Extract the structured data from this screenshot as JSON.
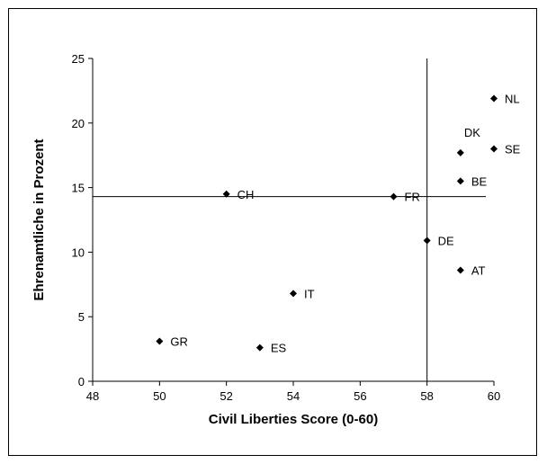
{
  "chart_data": {
    "type": "scatter",
    "xlabel": "Civil Liberties Score (0-60)",
    "ylabel": "Ehrenamtliche in Prozent",
    "xlim": [
      48,
      60
    ],
    "ylim": [
      0,
      25
    ],
    "x_ticks": [
      48,
      50,
      52,
      54,
      56,
      58,
      60
    ],
    "y_ticks": [
      0,
      5,
      10,
      15,
      20,
      25
    ],
    "grid": false,
    "marker": "diamond",
    "color": "#000000",
    "reference_lines": {
      "horizontal_y": 14.3,
      "vertical_x": 58
    },
    "points": [
      {
        "label": "NL",
        "x": 60,
        "y": 21.9
      },
      {
        "label": "DK",
        "x": 59,
        "y": 17.7
      },
      {
        "label": "SE",
        "x": 60,
        "y": 18.0
      },
      {
        "label": "BE",
        "x": 59,
        "y": 15.5
      },
      {
        "label": "CH",
        "x": 52,
        "y": 14.5
      },
      {
        "label": "FR",
        "x": 57,
        "y": 14.3
      },
      {
        "label": "DE",
        "x": 58,
        "y": 10.9
      },
      {
        "label": "AT",
        "x": 59,
        "y": 8.6
      },
      {
        "label": "IT",
        "x": 54,
        "y": 6.8
      },
      {
        "label": "GR",
        "x": 50,
        "y": 3.1
      },
      {
        "label": "ES",
        "x": 53,
        "y": 2.6
      }
    ]
  }
}
